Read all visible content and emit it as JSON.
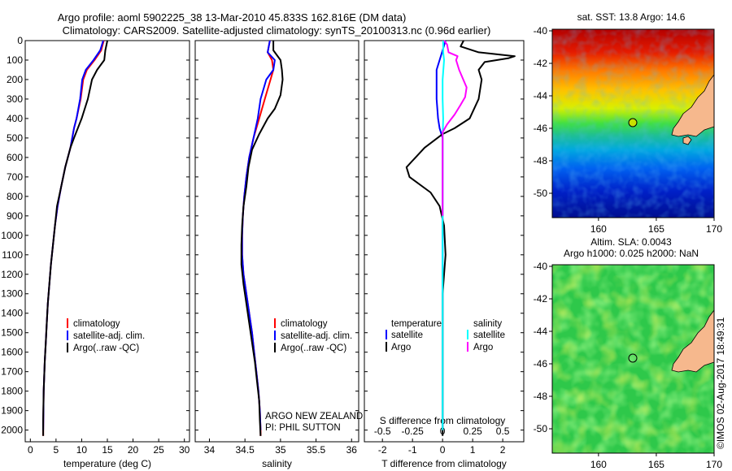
{
  "title_line1": "Argo profile: aoml 5902225_38 13-Mar-2010 45.833S 162.816E (DM data)",
  "title_line2": "Climatology: CARS2009. Satellite-adjusted climatology: synTS_20100313.nc (0.96d earlier)",
  "sst_title": "sat. SST: 13.8 Argo: 14.6",
  "sla_title1": "Altim. SLA: 0.0043",
  "sla_title2": "Argo h1000: 0.025 h2000: NaN",
  "credit": "©IMOS 02-Aug-2017 18:49:31",
  "note_line1": "ARGO NEW ZEALAND",
  "note_line2": "PI: PHIL SUTTON",
  "colors": {
    "red": "#ff0000",
    "blue": "#0000ff",
    "black": "#000000",
    "cyan": "#00ffff",
    "magenta": "#ff00ff",
    "land": "#f6b88d"
  },
  "legend_profile": [
    "climatology",
    "satellite-adj. clim.",
    "Argo(..raw -QC)"
  ],
  "legend_diff": {
    "temp_header": "temperature",
    "sal_header": "salinity",
    "satellite": "satellite",
    "argo": "Argo"
  },
  "depth_ticks": [
    "0",
    "100",
    "200",
    "300",
    "400",
    "500",
    "600",
    "700",
    "800",
    "900",
    "1000",
    "1100",
    "1200",
    "1300",
    "1400",
    "1500",
    "1600",
    "1700",
    "1800",
    "1900",
    "2000"
  ],
  "map_lat_ticks": [
    "-40",
    "-42",
    "-44",
    "-46",
    "-48",
    "-50"
  ],
  "map_lon_ticks": [
    "160",
    "165",
    "170"
  ],
  "chart_data": [
    {
      "type": "line",
      "xlabel": "temperature (deg C)",
      "xlim": [
        -1,
        31
      ],
      "ylim": [
        2060,
        0
      ],
      "xticks": [
        "0",
        "5",
        "10",
        "15",
        "20",
        "25",
        "30"
      ],
      "series": [
        {
          "name": "climatology",
          "color": "#ff0000",
          "points": [
            [
              14.3,
              0
            ],
            [
              13.8,
              50
            ],
            [
              12.5,
              100
            ],
            [
              11,
              150
            ],
            [
              10.3,
              200
            ],
            [
              9.8,
              300
            ],
            [
              9,
              400
            ],
            [
              8.5,
              450
            ],
            [
              7.8,
              550
            ],
            [
              6.8,
              650
            ],
            [
              6,
              750
            ],
            [
              5.3,
              850
            ],
            [
              4.8,
              950
            ],
            [
              4.4,
              1050
            ],
            [
              4,
              1150
            ],
            [
              3.7,
              1250
            ],
            [
              3.4,
              1350
            ],
            [
              3.2,
              1450
            ],
            [
              3,
              1550
            ],
            [
              2.8,
              1650
            ],
            [
              2.6,
              1800
            ],
            [
              2.5,
              2000
            ],
            [
              2.5,
              2030
            ]
          ]
        },
        {
          "name": "satellite-adj. clim.",
          "color": "#0000ff",
          "points": [
            [
              14.2,
              0
            ],
            [
              13.6,
              50
            ],
            [
              12.3,
              100
            ],
            [
              10.8,
              150
            ],
            [
              10.1,
              200
            ],
            [
              9.7,
              300
            ],
            [
              9,
              400
            ],
            [
              8.5,
              450
            ],
            [
              7.8,
              550
            ],
            [
              6.8,
              650
            ],
            [
              6,
              750
            ],
            [
              5.3,
              850
            ],
            [
              4.8,
              950
            ],
            [
              4.4,
              1050
            ],
            [
              4,
              1150
            ],
            [
              3.7,
              1250
            ],
            [
              3.4,
              1350
            ],
            [
              3.2,
              1450
            ],
            [
              3,
              1550
            ],
            [
              2.8,
              1650
            ],
            [
              2.6,
              1800
            ],
            [
              2.5,
              2000
            ]
          ]
        },
        {
          "name": "Argo(..raw -QC)",
          "color": "#000000",
          "points": [
            [
              15,
              0
            ],
            [
              14.6,
              50
            ],
            [
              14.4,
              100
            ],
            [
              13,
              150
            ],
            [
              12,
              200
            ],
            [
              11.2,
              300
            ],
            [
              10,
              400
            ],
            [
              8.5,
              500
            ],
            [
              7.8,
              550
            ],
            [
              6.8,
              650
            ],
            [
              6,
              750
            ],
            [
              5.2,
              850
            ],
            [
              4.8,
              950
            ],
            [
              4.4,
              1050
            ],
            [
              4,
              1150
            ],
            [
              3.7,
              1250
            ],
            [
              3.4,
              1350
            ],
            [
              3.2,
              1450
            ],
            [
              3,
              1550
            ],
            [
              2.8,
              1650
            ],
            [
              2.6,
              1800
            ],
            [
              2.5,
              1950
            ],
            [
              2.5,
              2030
            ]
          ]
        }
      ]
    },
    {
      "type": "line",
      "xlabel": "salinity",
      "xlim": [
        33.8,
        36.1
      ],
      "ylim": [
        2060,
        0
      ],
      "xticks": [
        "34",
        "34.5",
        "35",
        "35.5",
        "36"
      ],
      "series": [
        {
          "name": "climatology",
          "color": "#ff0000",
          "points": [
            [
              34.85,
              0
            ],
            [
              34.82,
              60
            ],
            [
              34.88,
              100
            ],
            [
              34.9,
              150
            ],
            [
              34.86,
              200
            ],
            [
              34.78,
              300
            ],
            [
              34.7,
              400
            ],
            [
              34.62,
              500
            ],
            [
              34.56,
              600
            ],
            [
              34.52,
              700
            ],
            [
              34.49,
              800
            ],
            [
              34.47,
              900
            ],
            [
              34.46,
              1000
            ],
            [
              34.46,
              1100
            ],
            [
              34.48,
              1200
            ],
            [
              34.52,
              1300
            ],
            [
              34.56,
              1400
            ],
            [
              34.6,
              1500
            ],
            [
              34.63,
              1600
            ],
            [
              34.66,
              1700
            ],
            [
              34.69,
              1800
            ],
            [
              34.71,
              1900
            ],
            [
              34.72,
              2000
            ],
            [
              34.72,
              2030
            ]
          ]
        },
        {
          "name": "satellite-adj. clim.",
          "color": "#0000ff",
          "points": [
            [
              34.85,
              0
            ],
            [
              34.82,
              60
            ],
            [
              34.92,
              100
            ],
            [
              34.9,
              150
            ],
            [
              34.8,
              200
            ],
            [
              34.72,
              300
            ],
            [
              34.68,
              400
            ],
            [
              34.62,
              500
            ],
            [
              34.56,
              600
            ],
            [
              34.52,
              700
            ],
            [
              34.49,
              800
            ],
            [
              34.47,
              900
            ],
            [
              34.46,
              1000
            ],
            [
              34.46,
              1100
            ],
            [
              34.48,
              1200
            ],
            [
              34.52,
              1300
            ],
            [
              34.56,
              1400
            ],
            [
              34.6,
              1500
            ],
            [
              34.63,
              1600
            ],
            [
              34.66,
              1700
            ],
            [
              34.69,
              1800
            ],
            [
              34.71,
              1900
            ],
            [
              34.72,
              2000
            ]
          ]
        },
        {
          "name": "Argo(..raw -QC)",
          "color": "#000000",
          "points": [
            [
              34.9,
              0
            ],
            [
              34.9,
              50
            ],
            [
              35,
              100
            ],
            [
              35.02,
              150
            ],
            [
              35.03,
              200
            ],
            [
              35,
              280
            ],
            [
              34.92,
              350
            ],
            [
              34.82,
              400
            ],
            [
              34.7,
              480
            ],
            [
              34.6,
              560
            ],
            [
              34.55,
              650
            ],
            [
              34.52,
              750
            ],
            [
              34.48,
              850
            ],
            [
              34.46,
              950
            ],
            [
              34.45,
              1050
            ],
            [
              34.45,
              1150
            ],
            [
              34.48,
              1250
            ],
            [
              34.52,
              1350
            ],
            [
              34.56,
              1450
            ],
            [
              34.6,
              1550
            ],
            [
              34.64,
              1650
            ],
            [
              34.67,
              1750
            ],
            [
              34.7,
              1850
            ],
            [
              34.71,
              1950
            ],
            [
              34.72,
              2030
            ]
          ]
        }
      ]
    },
    {
      "type": "line",
      "xlabel": "T difference from climatology",
      "xlim": [
        -2.6,
        2.7
      ],
      "ylim": [
        2060,
        0
      ],
      "xticks": [
        "-2",
        "-1",
        "0",
        "1",
        "2"
      ],
      "top_axis_label": "S difference from climatology",
      "top_ticks": [
        "-0.5",
        "-0.25",
        "0",
        "0.25",
        "0.5"
      ],
      "series": [
        {
          "name": "temperature satellite",
          "color": "#0000ff",
          "points": [
            [
              0.1,
              0
            ],
            [
              0,
              50
            ],
            [
              -0.1,
              100
            ],
            [
              -0.2,
              150
            ],
            [
              -0.2,
              200
            ],
            [
              -0.2,
              300
            ],
            [
              -0.15,
              400
            ],
            [
              -0.1,
              450
            ],
            [
              0,
              500
            ],
            [
              0,
              700
            ],
            [
              0,
              900
            ],
            [
              0,
              1200
            ],
            [
              0,
              1600
            ],
            [
              0,
              2000
            ]
          ]
        },
        {
          "name": "temperature Argo",
          "color": "#000000",
          "points": [
            [
              0.7,
              0
            ],
            [
              0.6,
              30
            ],
            [
              1.2,
              60
            ],
            [
              2.4,
              80
            ],
            [
              2.2,
              90
            ],
            [
              1.4,
              110
            ],
            [
              1.2,
              150
            ],
            [
              1.3,
              200
            ],
            [
              1.2,
              300
            ],
            [
              0.9,
              400
            ],
            [
              0.4,
              450
            ],
            [
              0,
              480
            ],
            [
              -0.6,
              550
            ],
            [
              -0.9,
              600
            ],
            [
              -1.2,
              650
            ],
            [
              -1.1,
              700
            ],
            [
              -0.4,
              780
            ],
            [
              -0.1,
              850
            ],
            [
              0.05,
              950
            ],
            [
              0.1,
              1100
            ],
            [
              0.05,
              1200
            ],
            [
              0,
              1300
            ],
            [
              0,
              1600
            ],
            [
              0,
              2030
            ]
          ]
        },
        {
          "name": "salinity satellite",
          "color": "#00ffff",
          "points": [
            [
              0.02,
              0
            ],
            [
              0.02,
              60
            ],
            [
              0.05,
              100
            ],
            [
              0,
              200
            ],
            [
              0,
              300
            ],
            [
              0.02,
              400
            ],
            [
              0,
              500
            ],
            [
              0,
              800
            ],
            [
              0,
              1200
            ],
            [
              0,
              1600
            ],
            [
              0,
              2000
            ]
          ]
        },
        {
          "name": "salinity Argo",
          "color": "#ff00ff",
          "points": [
            [
              0.05,
              0
            ],
            [
              0.15,
              20
            ],
            [
              0.2,
              60
            ],
            [
              0.5,
              80
            ],
            [
              0.45,
              100
            ],
            [
              0.55,
              150
            ],
            [
              0.8,
              240
            ],
            [
              0.75,
              290
            ],
            [
              0.6,
              330
            ],
            [
              0.4,
              380
            ],
            [
              0.15,
              430
            ],
            [
              0,
              470
            ],
            [
              0,
              600
            ],
            [
              0,
              900
            ]
          ]
        }
      ]
    }
  ]
}
